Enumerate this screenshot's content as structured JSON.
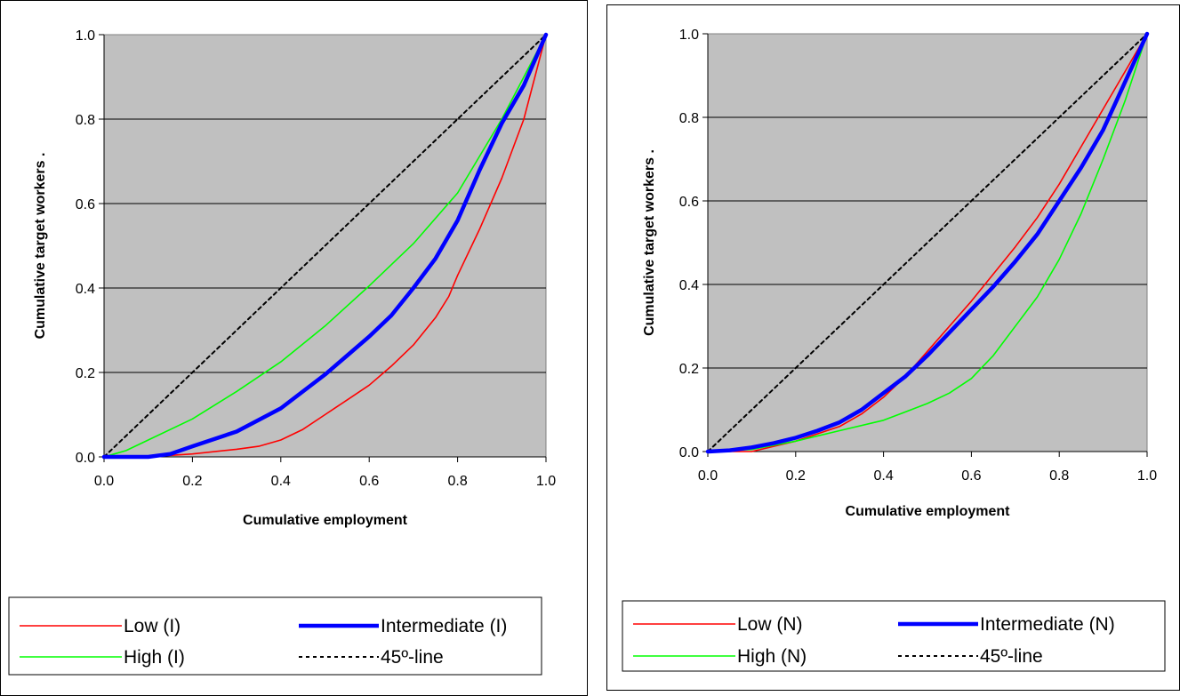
{
  "chart_data": [
    {
      "type": "line",
      "xlabel": "Cumulative employment",
      "ylabel": "Cumulative target workers .",
      "xlim": [
        0,
        1
      ],
      "ylim": [
        0,
        1
      ],
      "x_ticks": [
        "0.0",
        "0.2",
        "0.4",
        "0.6",
        "0.8",
        "1.0"
      ],
      "y_ticks": [
        "0.0",
        "0.2",
        "0.4",
        "0.6",
        "0.8",
        "1.0"
      ],
      "grid": "horizontal",
      "plot_background": "#c0c0c0",
      "legend_position": "bottom",
      "series": [
        {
          "name": "Low (I)",
          "color": "#ff0000",
          "style": "thin",
          "x": [
            0,
            0.1,
            0.2,
            0.3,
            0.35,
            0.4,
            0.45,
            0.5,
            0.55,
            0.6,
            0.65,
            0.7,
            0.75,
            0.78,
            0.8,
            0.85,
            0.9,
            0.95,
            1.0
          ],
          "y": [
            0,
            0,
            0.007,
            0.018,
            0.025,
            0.04,
            0.065,
            0.1,
            0.135,
            0.17,
            0.215,
            0.265,
            0.33,
            0.38,
            0.43,
            0.54,
            0.66,
            0.8,
            1.0
          ]
        },
        {
          "name": "Intermediate (I)",
          "color": "#0000ff",
          "style": "thick",
          "x": [
            0,
            0.1,
            0.15,
            0.2,
            0.3,
            0.4,
            0.5,
            0.55,
            0.6,
            0.65,
            0.7,
            0.75,
            0.8,
            0.85,
            0.9,
            0.95,
            1.0
          ],
          "y": [
            0,
            0,
            0.007,
            0.025,
            0.06,
            0.115,
            0.195,
            0.24,
            0.285,
            0.335,
            0.4,
            0.47,
            0.56,
            0.68,
            0.79,
            0.88,
            1.0
          ]
        },
        {
          "name": "High (I)",
          "color": "#00ff00",
          "style": "thin",
          "x": [
            0,
            0.05,
            0.1,
            0.2,
            0.3,
            0.4,
            0.5,
            0.6,
            0.7,
            0.8,
            0.9,
            1.0
          ],
          "y": [
            0,
            0.015,
            0.04,
            0.09,
            0.155,
            0.225,
            0.31,
            0.405,
            0.505,
            0.625,
            0.8,
            1.0
          ]
        },
        {
          "name": "45º-line",
          "color": "#000000",
          "style": "dashed",
          "x": [
            0,
            1
          ],
          "y": [
            0,
            1
          ]
        }
      ]
    },
    {
      "type": "line",
      "xlabel": "Cumulative employment",
      "ylabel": "Cumulative target workers .",
      "xlim": [
        0,
        1
      ],
      "ylim": [
        0,
        1
      ],
      "x_ticks": [
        "0.0",
        "0.2",
        "0.4",
        "0.6",
        "0.8",
        "1.0"
      ],
      "y_ticks": [
        "0.0",
        "0.2",
        "0.4",
        "0.6",
        "0.8",
        "1.0"
      ],
      "grid": "horizontal",
      "plot_background": "#c0c0c0",
      "legend_position": "bottom",
      "series": [
        {
          "name": "Low (N)",
          "color": "#ff0000",
          "style": "thin",
          "x": [
            0,
            0.1,
            0.2,
            0.3,
            0.35,
            0.4,
            0.45,
            0.5,
            0.55,
            0.6,
            0.65,
            0.7,
            0.75,
            0.8,
            0.85,
            0.9,
            1.0
          ],
          "y": [
            0,
            0,
            0.025,
            0.06,
            0.09,
            0.13,
            0.18,
            0.24,
            0.3,
            0.36,
            0.425,
            0.49,
            0.56,
            0.64,
            0.73,
            0.82,
            1.0
          ]
        },
        {
          "name": "Intermediate (N)",
          "color": "#0000ff",
          "style": "thick",
          "x": [
            0,
            0.05,
            0.1,
            0.15,
            0.2,
            0.25,
            0.3,
            0.35,
            0.4,
            0.45,
            0.5,
            0.55,
            0.6,
            0.65,
            0.7,
            0.75,
            0.8,
            0.85,
            0.9,
            1.0
          ],
          "y": [
            0,
            0.003,
            0.01,
            0.02,
            0.033,
            0.05,
            0.07,
            0.1,
            0.14,
            0.18,
            0.23,
            0.285,
            0.34,
            0.395,
            0.455,
            0.52,
            0.6,
            0.68,
            0.77,
            1.0
          ]
        },
        {
          "name": "High (N)",
          "color": "#00ff00",
          "style": "thin",
          "x": [
            0,
            0.1,
            0.2,
            0.3,
            0.4,
            0.5,
            0.55,
            0.6,
            0.65,
            0.7,
            0.75,
            0.8,
            0.85,
            0.9,
            0.95,
            1.0
          ],
          "y": [
            0,
            0.005,
            0.025,
            0.05,
            0.075,
            0.115,
            0.14,
            0.175,
            0.23,
            0.3,
            0.37,
            0.46,
            0.57,
            0.7,
            0.84,
            1.0
          ]
        },
        {
          "name": "45º-line",
          "color": "#000000",
          "style": "dashed",
          "x": [
            0,
            1
          ],
          "y": [
            0,
            1
          ]
        }
      ]
    }
  ]
}
